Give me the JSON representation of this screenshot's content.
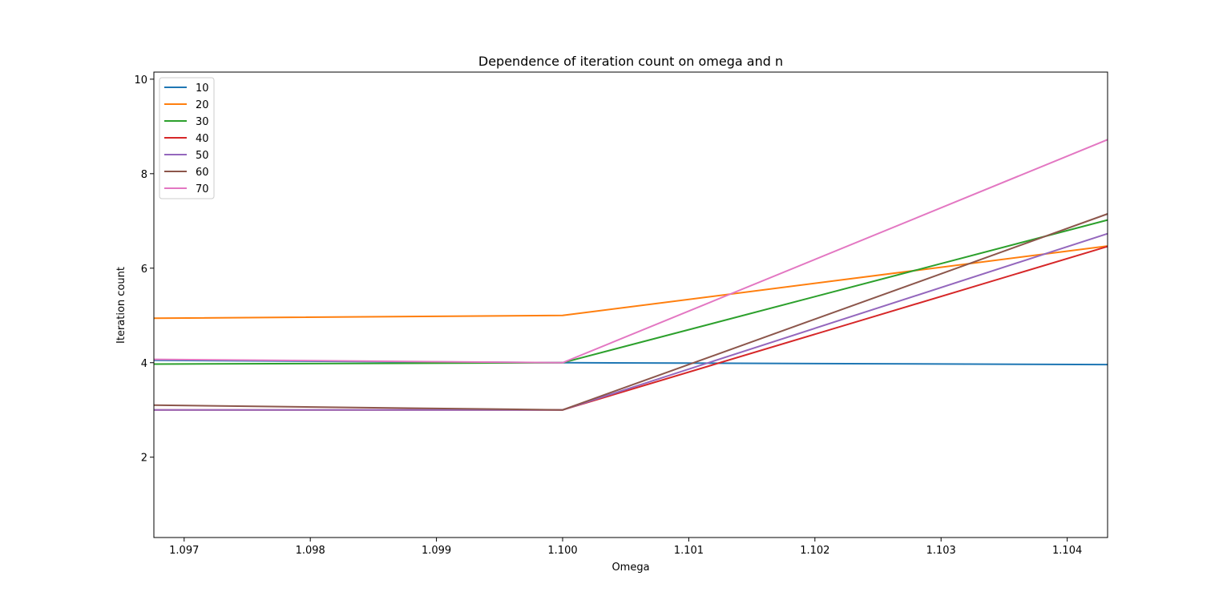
{
  "chart_data": {
    "type": "line",
    "title": "Dependence of iteration count on omega and n",
    "xlabel": "Omega",
    "ylabel": "Iteration count",
    "xlim": [
      1.09676,
      1.10432
    ],
    "ylim": [
      0.3,
      10.15
    ],
    "xticks": [
      1.097,
      1.098,
      1.099,
      1.1,
      1.101,
      1.102,
      1.103,
      1.104
    ],
    "xtick_labels": [
      "1.097",
      "1.098",
      "1.099",
      "1.100",
      "1.101",
      "1.102",
      "1.103",
      "1.104"
    ],
    "yticks": [
      2,
      4,
      6,
      8,
      10
    ],
    "ytick_labels": [
      "2",
      "4",
      "6",
      "8",
      "10"
    ],
    "grid": false,
    "legend_position": "upper-left",
    "series": [
      {
        "name": "10",
        "color": "#1f77b4",
        "x": [
          1.09676,
          1.1,
          1.10432
        ],
        "y": [
          4.05,
          4.0,
          3.96
        ]
      },
      {
        "name": "20",
        "color": "#ff7f0e",
        "x": [
          1.09676,
          1.1,
          1.10432
        ],
        "y": [
          4.94,
          5.0,
          6.47
        ]
      },
      {
        "name": "30",
        "color": "#2ca02c",
        "x": [
          1.09676,
          1.1,
          1.10432
        ],
        "y": [
          3.97,
          4.0,
          7.02
        ]
      },
      {
        "name": "40",
        "color": "#d62728",
        "x": [
          1.09676,
          1.1,
          1.10432
        ],
        "y": [
          3.0,
          3.0,
          6.46
        ]
      },
      {
        "name": "50",
        "color": "#9467bd",
        "x": [
          1.09676,
          1.1,
          1.10432
        ],
        "y": [
          3.0,
          3.0,
          6.73
        ]
      },
      {
        "name": "60",
        "color": "#8c564b",
        "x": [
          1.09676,
          1.1,
          1.10432
        ],
        "y": [
          3.1,
          3.0,
          7.15
        ]
      },
      {
        "name": "70",
        "color": "#e377c2",
        "x": [
          1.09676,
          1.1,
          1.10432
        ],
        "y": [
          4.07,
          4.0,
          8.72
        ]
      }
    ]
  }
}
